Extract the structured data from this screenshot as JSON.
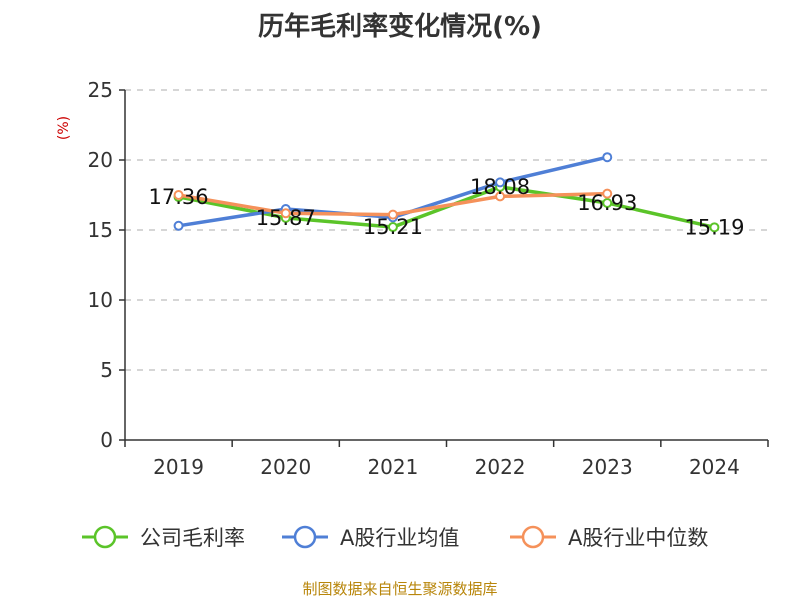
{
  "chart_data": {
    "type": "line",
    "title": "历年毛利率变化情况(%)",
    "ylabel": "(%)",
    "categories": [
      "2019",
      "2020",
      "2021",
      "2022",
      "2023",
      "2024"
    ],
    "ylim": [
      0,
      25
    ],
    "yticks": [
      0,
      5,
      10,
      15,
      20,
      25
    ],
    "grid": true,
    "legend_position": "bottom",
    "series": [
      {
        "name": "公司毛利率",
        "color": "#5bc429",
        "values": [
          17.36,
          15.87,
          15.21,
          18.08,
          16.93,
          15.19
        ],
        "labels": [
          "17.36",
          "15.87",
          "15.21",
          "18.08",
          "16.93",
          "15.19"
        ]
      },
      {
        "name": "A股行业均值",
        "color": "#4f7fd6",
        "values": [
          15.3,
          16.5,
          15.9,
          18.4,
          20.2,
          null
        ]
      },
      {
        "name": "A股行业中位数",
        "color": "#f5915a",
        "values": [
          17.5,
          16.2,
          16.1,
          17.4,
          17.6,
          null
        ]
      }
    ]
  },
  "source": "制图数据来自恒生聚源数据库"
}
